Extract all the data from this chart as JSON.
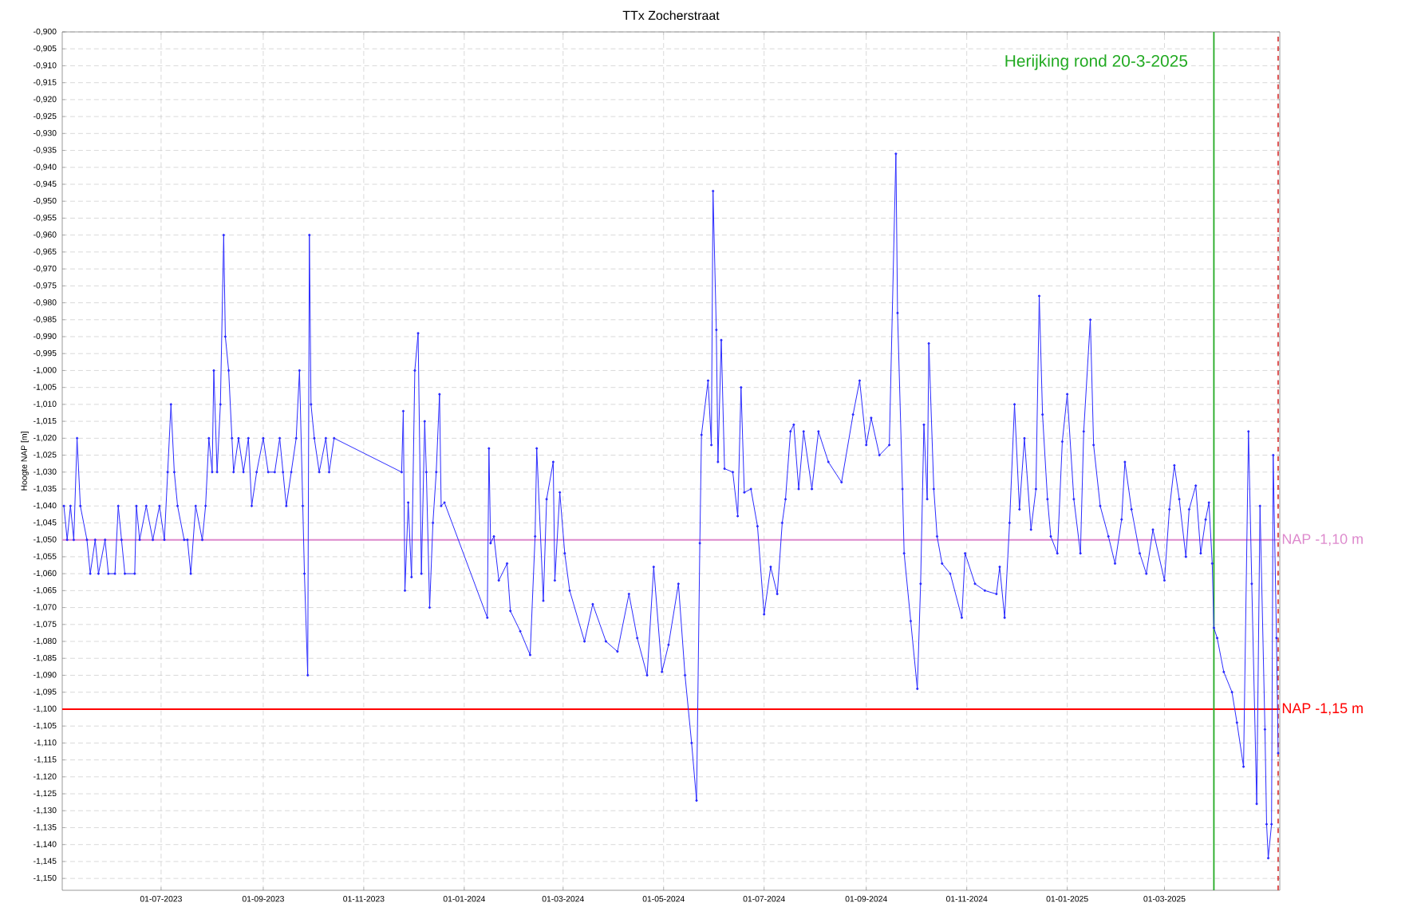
{
  "chart_data": {
    "type": "line",
    "title": "TTx Zocherstraat",
    "ylabel": "Hoogte NAP [m]",
    "xlim": [
      "2023-05-02",
      "2025-05-10"
    ],
    "ylim": [
      -1.1535,
      -0.9
    ],
    "xticks": [
      {
        "value": "2023-07-01",
        "label": "01-07-2023"
      },
      {
        "value": "2023-09-01",
        "label": "01-09-2023"
      },
      {
        "value": "2023-11-01",
        "label": "01-11-2023"
      },
      {
        "value": "2024-01-01",
        "label": "01-01-2024"
      },
      {
        "value": "2024-03-01",
        "label": "01-03-2024"
      },
      {
        "value": "2024-05-01",
        "label": "01-05-2024"
      },
      {
        "value": "2024-07-01",
        "label": "01-07-2024"
      },
      {
        "value": "2024-09-01",
        "label": "01-09-2024"
      },
      {
        "value": "2024-11-01",
        "label": "01-11-2024"
      },
      {
        "value": "2025-01-01",
        "label": "01-01-2025"
      },
      {
        "value": "2025-03-01",
        "label": "01-03-2025"
      }
    ],
    "yticks": [
      {
        "value": -0.9,
        "label": "-0,900"
      },
      {
        "value": -0.905,
        "label": "-0,905"
      },
      {
        "value": -0.91,
        "label": "-0,910"
      },
      {
        "value": -0.915,
        "label": "-0,915"
      },
      {
        "value": -0.92,
        "label": "-0,920"
      },
      {
        "value": -0.925,
        "label": "-0,925"
      },
      {
        "value": -0.93,
        "label": "-0,930"
      },
      {
        "value": -0.935,
        "label": "-0,935"
      },
      {
        "value": -0.94,
        "label": "-0,940"
      },
      {
        "value": -0.945,
        "label": "-0,945"
      },
      {
        "value": -0.95,
        "label": "-0,950"
      },
      {
        "value": -0.955,
        "label": "-0,955"
      },
      {
        "value": -0.96,
        "label": "-0,960"
      },
      {
        "value": -0.965,
        "label": "-0,965"
      },
      {
        "value": -0.97,
        "label": "-0,970"
      },
      {
        "value": -0.975,
        "label": "-0,975"
      },
      {
        "value": -0.98,
        "label": "-0,980"
      },
      {
        "value": -0.985,
        "label": "-0,985"
      },
      {
        "value": -0.99,
        "label": "-0,990"
      },
      {
        "value": -0.995,
        "label": "-0,995"
      },
      {
        "value": -1.0,
        "label": "-1,000"
      },
      {
        "value": -1.005,
        "label": "-1,005"
      },
      {
        "value": -1.01,
        "label": "-1,010"
      },
      {
        "value": -1.015,
        "label": "-1,015"
      },
      {
        "value": -1.02,
        "label": "-1,020"
      },
      {
        "value": -1.025,
        "label": "-1,025"
      },
      {
        "value": -1.03,
        "label": "-1,030"
      },
      {
        "value": -1.035,
        "label": "-1,035"
      },
      {
        "value": -1.04,
        "label": "-1,040"
      },
      {
        "value": -1.045,
        "label": "-1,045"
      },
      {
        "value": -1.05,
        "label": "-1,050"
      },
      {
        "value": -1.055,
        "label": "-1,055"
      },
      {
        "value": -1.06,
        "label": "-1,060"
      },
      {
        "value": -1.065,
        "label": "-1,065"
      },
      {
        "value": -1.07,
        "label": "-1,070"
      },
      {
        "value": -1.075,
        "label": "-1,075"
      },
      {
        "value": -1.08,
        "label": "-1,080"
      },
      {
        "value": -1.085,
        "label": "-1,085"
      },
      {
        "value": -1.09,
        "label": "-1,090"
      },
      {
        "value": -1.095,
        "label": "-1,095"
      },
      {
        "value": -1.1,
        "label": "-1,100"
      },
      {
        "value": -1.105,
        "label": "-1,105"
      },
      {
        "value": -1.11,
        "label": "-1,110"
      },
      {
        "value": -1.115,
        "label": "-1,115"
      },
      {
        "value": -1.12,
        "label": "-1,120"
      },
      {
        "value": -1.125,
        "label": "-1,125"
      },
      {
        "value": -1.13,
        "label": "-1,130"
      },
      {
        "value": -1.135,
        "label": "-1,135"
      },
      {
        "value": -1.14,
        "label": "-1,140"
      },
      {
        "value": -1.145,
        "label": "-1,145"
      },
      {
        "value": -1.15,
        "label": "-1,150"
      }
    ],
    "grid": true,
    "marker": "circle",
    "line_style": "solid",
    "ref_lines": [
      {
        "axis": "y",
        "value": -1.05,
        "label": "NAP -1,10 m",
        "color": "#dd88cc"
      },
      {
        "axis": "y",
        "value": -1.1,
        "label": "NAP -1,15 m",
        "color": "#ff0000"
      },
      {
        "axis": "x",
        "value": "2025-03-31",
        "label": "Herijking rond 20-3-2025",
        "color": "#22aa22"
      },
      {
        "axis": "x",
        "value": "2025-05-09",
        "color": "#dd4444",
        "line_style": "dashed"
      }
    ],
    "series": [
      {
        "color": "#2a2aff",
        "x": [
          "2023-05-03",
          "2023-05-05",
          "2023-05-07",
          "2023-05-09",
          "2023-05-11",
          "2023-05-13",
          "2023-05-17",
          "2023-05-19",
          "2023-05-22",
          "2023-05-24",
          "2023-05-28",
          "2023-05-30",
          "2023-06-03",
          "2023-06-05",
          "2023-06-07",
          "2023-06-09",
          "2023-06-15",
          "2023-06-16",
          "2023-06-18",
          "2023-06-22",
          "2023-06-26",
          "2023-06-30",
          "2023-07-03",
          "2023-07-05",
          "2023-07-07",
          "2023-07-09",
          "2023-07-11",
          "2023-07-15",
          "2023-07-17",
          "2023-07-19",
          "2023-07-22",
          "2023-07-26",
          "2023-07-28",
          "2023-07-30",
          "2023-08-01",
          "2023-08-02",
          "2023-08-04",
          "2023-08-06",
          "2023-08-08",
          "2023-08-09",
          "2023-08-11",
          "2023-08-13",
          "2023-08-14",
          "2023-08-17",
          "2023-08-20",
          "2023-08-23",
          "2023-08-25",
          "2023-08-28",
          "2023-09-01",
          "2023-09-04",
          "2023-09-08",
          "2023-09-11",
          "2023-09-13",
          "2023-09-15",
          "2023-09-18",
          "2023-09-21",
          "2023-09-23",
          "2023-09-25",
          "2023-09-26",
          "2023-09-28",
          "2023-09-29",
          "2023-09-30",
          "2023-10-02",
          "2023-10-05",
          "2023-10-09",
          "2023-10-11",
          "2023-10-14",
          "2023-11-24",
          "2023-11-25",
          "2023-11-26",
          "2023-11-28",
          "2023-11-30",
          "2023-12-02",
          "2023-12-04",
          "2023-12-06",
          "2023-12-08",
          "2023-12-09",
          "2023-12-11",
          "2023-12-13",
          "2023-12-15",
          "2023-12-17",
          "2023-12-18",
          "2023-12-20",
          "2024-01-15",
          "2024-01-16",
          "2024-01-17",
          "2024-01-19",
          "2024-01-22",
          "2024-01-27",
          "2024-01-29",
          "2024-02-04",
          "2024-02-10",
          "2024-02-13",
          "2024-02-14",
          "2024-02-18",
          "2024-02-20",
          "2024-02-24",
          "2024-02-25",
          "2024-02-28",
          "2024-03-02",
          "2024-03-05",
          "2024-03-14",
          "2024-03-19",
          "2024-03-27",
          "2024-04-03",
          "2024-04-10",
          "2024-04-15",
          "2024-04-21",
          "2024-04-25",
          "2024-04-30",
          "2024-05-04",
          "2024-05-10",
          "2024-05-14",
          "2024-05-18",
          "2024-05-21",
          "2024-05-23",
          "2024-05-24",
          "2024-05-28",
          "2024-05-30",
          "2024-05-31",
          "2024-06-02",
          "2024-06-03",
          "2024-06-05",
          "2024-06-07",
          "2024-06-12",
          "2024-06-15",
          "2024-06-17",
          "2024-06-19",
          "2024-06-23",
          "2024-06-27",
          "2024-07-01",
          "2024-07-05",
          "2024-07-09",
          "2024-07-12",
          "2024-07-14",
          "2024-07-17",
          "2024-07-19",
          "2024-07-22",
          "2024-07-25",
          "2024-07-30",
          "2024-08-03",
          "2024-08-09",
          "2024-08-17",
          "2024-08-24",
          "2024-08-28",
          "2024-09-01",
          "2024-09-04",
          "2024-09-09",
          "2024-09-15",
          "2024-09-19",
          "2024-09-20",
          "2024-09-23",
          "2024-09-24",
          "2024-09-28",
          "2024-10-02",
          "2024-10-04",
          "2024-10-06",
          "2024-10-08",
          "2024-10-09",
          "2024-10-12",
          "2024-10-14",
          "2024-10-17",
          "2024-10-22",
          "2024-10-29",
          "2024-10-31",
          "2024-11-06",
          "2024-11-12",
          "2024-11-19",
          "2024-11-21",
          "2024-11-24",
          "2024-11-27",
          "2024-11-30",
          "2024-12-03",
          "2024-12-06",
          "2024-12-10",
          "2024-12-13",
          "2024-12-15",
          "2024-12-17",
          "2024-12-20",
          "2024-12-22",
          "2024-12-26",
          "2024-12-29",
          "2025-01-01",
          "2025-01-05",
          "2025-01-09",
          "2025-01-11",
          "2025-01-15",
          "2025-01-17",
          "2025-01-21",
          "2025-01-26",
          "2025-01-30",
          "2025-02-03",
          "2025-02-05",
          "2025-02-09",
          "2025-02-14",
          "2025-02-18",
          "2025-02-22",
          "2025-03-01",
          "2025-03-04",
          "2025-03-07",
          "2025-03-10",
          "2025-03-14",
          "2025-03-16",
          "2025-03-20",
          "2025-03-23",
          "2025-03-26",
          "2025-03-28",
          "2025-03-30",
          "2025-03-31",
          "2025-04-02",
          "2025-04-06",
          "2025-04-11",
          "2025-04-14",
          "2025-04-18",
          "2025-04-21",
          "2025-04-23",
          "2025-04-26",
          "2025-04-28",
          "2025-05-01",
          "2025-05-02",
          "2025-05-03",
          "2025-05-05",
          "2025-05-06",
          "2025-05-08",
          "2025-05-09"
        ],
        "values": [
          -1.04,
          -1.05,
          -1.04,
          -1.05,
          -1.02,
          -1.04,
          -1.05,
          -1.06,
          -1.05,
          -1.06,
          -1.05,
          -1.06,
          -1.06,
          -1.04,
          -1.05,
          -1.06,
          -1.06,
          -1.04,
          -1.05,
          -1.04,
          -1.05,
          -1.04,
          -1.05,
          -1.03,
          -1.01,
          -1.03,
          -1.04,
          -1.05,
          -1.05,
          -1.06,
          -1.04,
          -1.05,
          -1.04,
          -1.02,
          -1.03,
          -1.0,
          -1.03,
          -1.01,
          -0.96,
          -0.99,
          -1.0,
          -1.02,
          -1.03,
          -1.02,
          -1.03,
          -1.02,
          -1.04,
          -1.03,
          -1.02,
          -1.03,
          -1.03,
          -1.02,
          -1.03,
          -1.04,
          -1.03,
          -1.02,
          -1.0,
          -1.04,
          -1.06,
          -1.09,
          -0.96,
          -1.01,
          -1.02,
          -1.03,
          -1.02,
          -1.03,
          -1.02,
          -1.03,
          -1.012,
          -1.065,
          -1.039,
          -1.061,
          -1.0,
          -0.989,
          -1.06,
          -1.015,
          -1.03,
          -1.07,
          -1.045,
          -1.03,
          -1.007,
          -1.04,
          -1.039,
          -1.073,
          -1.023,
          -1.051,
          -1.049,
          -1.062,
          -1.057,
          -1.071,
          -1.077,
          -1.084,
          -1.049,
          -1.023,
          -1.068,
          -1.038,
          -1.027,
          -1.062,
          -1.036,
          -1.054,
          -1.065,
          -1.08,
          -1.069,
          -1.08,
          -1.083,
          -1.066,
          -1.079,
          -1.09,
          -1.058,
          -1.089,
          -1.081,
          -1.063,
          -1.09,
          -1.11,
          -1.127,
          -1.051,
          -1.019,
          -1.003,
          -1.022,
          -0.947,
          -0.988,
          -1.027,
          -0.991,
          -1.029,
          -1.03,
          -1.043,
          -1.005,
          -1.036,
          -1.035,
          -1.046,
          -1.072,
          -1.058,
          -1.066,
          -1.045,
          -1.038,
          -1.018,
          -1.016,
          -1.035,
          -1.018,
          -1.035,
          -1.018,
          -1.027,
          -1.033,
          -1.013,
          -1.003,
          -1.022,
          -1.014,
          -1.025,
          -1.022,
          -0.936,
          -0.983,
          -1.035,
          -1.054,
          -1.074,
          -1.094,
          -1.063,
          -1.016,
          -1.038,
          -0.992,
          -1.035,
          -1.049,
          -1.057,
          -1.06,
          -1.073,
          -1.054,
          -1.063,
          -1.065,
          -1.066,
          -1.058,
          -1.073,
          -1.045,
          -1.01,
          -1.041,
          -1.02,
          -1.047,
          -1.035,
          -0.978,
          -1.013,
          -1.038,
          -1.049,
          -1.054,
          -1.021,
          -1.007,
          -1.038,
          -1.054,
          -1.018,
          -0.985,
          -1.022,
          -1.04,
          -1.049,
          -1.057,
          -1.044,
          -1.027,
          -1.041,
          -1.054,
          -1.06,
          -1.047,
          -1.062,
          -1.041,
          -1.028,
          -1.038,
          -1.055,
          -1.041,
          -1.034,
          -1.054,
          -1.044,
          -1.039,
          -1.057,
          -1.076,
          -1.079,
          -1.089,
          -1.095,
          -1.104,
          -1.117,
          -1.018,
          -1.063,
          -1.128,
          -1.04,
          -1.106,
          -1.134,
          -1.144,
          -1.134,
          -1.025,
          -1.079,
          -1.113
        ]
      }
    ]
  }
}
